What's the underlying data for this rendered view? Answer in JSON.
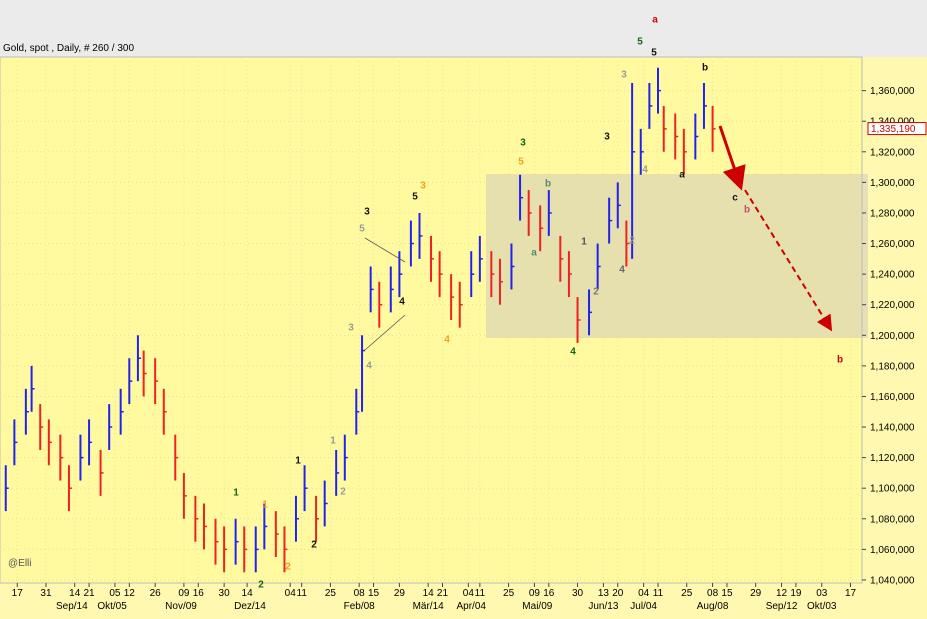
{
  "chart_data": {
    "type": "ohlc",
    "title": "Gold, spot , Daily, # 260 / 300",
    "watermark": "@Elli",
    "up_color": "#2222ee",
    "down_color": "#ee2222",
    "grid": true,
    "xlim": [
      0,
      300
    ],
    "ylim": [
      1038000,
      1382000
    ],
    "yticks": [
      {
        "value": 1040000,
        "label": "1,040,000"
      },
      {
        "value": 1060000,
        "label": "1,060,000"
      },
      {
        "value": 1080000,
        "label": "1,080,000"
      },
      {
        "value": 1100000,
        "label": "1,100,000"
      },
      {
        "value": 1120000,
        "label": "1,120,000"
      },
      {
        "value": 1140000,
        "label": "1,140,000"
      },
      {
        "value": 1160000,
        "label": "1,160,000"
      },
      {
        "value": 1180000,
        "label": "1,180,000"
      },
      {
        "value": 1200000,
        "label": "1,200,000"
      },
      {
        "value": 1220000,
        "label": "1,220,000"
      },
      {
        "value": 1240000,
        "label": "1,240,000"
      },
      {
        "value": 1260000,
        "label": "1,260,000"
      },
      {
        "value": 1280000,
        "label": "1,280,000"
      },
      {
        "value": 1300000,
        "label": "1,300,000"
      },
      {
        "value": 1320000,
        "label": "1,320,000"
      },
      {
        "value": 1340000,
        "label": "1,340,000"
      },
      {
        "value": 1360000,
        "label": "1,360,000"
      }
    ],
    "xticks": [
      {
        "value": 6,
        "label": "17"
      },
      {
        "value": 16,
        "label": "31"
      },
      {
        "value": 26,
        "label": "14"
      },
      {
        "value": 31,
        "label": "21"
      },
      {
        "value": 40,
        "label": "05"
      },
      {
        "value": 45,
        "label": "12"
      },
      {
        "value": 54,
        "label": "26"
      },
      {
        "value": 64,
        "label": "09"
      },
      {
        "value": 69,
        "label": "16"
      },
      {
        "value": 78,
        "label": "30"
      },
      {
        "value": 86,
        "label": "14"
      },
      {
        "value": 101,
        "label": "04"
      },
      {
        "value": 105,
        "label": "11"
      },
      {
        "value": 115,
        "label": "25"
      },
      {
        "value": 125,
        "label": "08"
      },
      {
        "value": 130,
        "label": "15"
      },
      {
        "value": 139,
        "label": "29"
      },
      {
        "value": 149,
        "label": "14"
      },
      {
        "value": 154,
        "label": "21"
      },
      {
        "value": 163,
        "label": "04"
      },
      {
        "value": 167,
        "label": "11"
      },
      {
        "value": 177,
        "label": "25"
      },
      {
        "value": 186,
        "label": "09"
      },
      {
        "value": 191,
        "label": "16"
      },
      {
        "value": 201,
        "label": "30"
      },
      {
        "value": 210,
        "label": "13"
      },
      {
        "value": 215,
        "label": "20"
      },
      {
        "value": 224,
        "label": "04"
      },
      {
        "value": 229,
        "label": "11"
      },
      {
        "value": 239,
        "label": "25"
      },
      {
        "value": 248,
        "label": "08"
      },
      {
        "value": 253,
        "label": "15"
      },
      {
        "value": 263,
        "label": "29"
      },
      {
        "value": 272,
        "label": "12"
      },
      {
        "value": 277,
        "label": "19"
      },
      {
        "value": 286,
        "label": "03"
      },
      {
        "value": 296,
        "label": "17"
      }
    ],
    "month_labels": [
      {
        "value": 25,
        "label": "Sep/14"
      },
      {
        "value": 39,
        "label": "Okt/05"
      },
      {
        "value": 63,
        "label": "Nov/09"
      },
      {
        "value": 87,
        "label": "Dez/14"
      },
      {
        "value": 125,
        "label": "Feb/08"
      },
      {
        "value": 149,
        "label": "Mär/14"
      },
      {
        "value": 164,
        "label": "Apr/04"
      },
      {
        "value": 187,
        "label": "Mai/09"
      },
      {
        "value": 210,
        "label": "Jun/13"
      },
      {
        "value": 224,
        "label": "Jul/04"
      },
      {
        "value": 248,
        "label": "Aug/08"
      },
      {
        "value": 272,
        "label": "Sep/12"
      },
      {
        "value": 286,
        "label": "Okt/03"
      }
    ],
    "last_price": {
      "value": 1335190,
      "label": "1,335,190"
    },
    "x": [
      2,
      5,
      9,
      11,
      14,
      17,
      21,
      24,
      28,
      31,
      35,
      38,
      42,
      45,
      48,
      50,
      54,
      57,
      61,
      64,
      68,
      71,
      75,
      78,
      82,
      85,
      89,
      92,
      96,
      99,
      103,
      106,
      110,
      113,
      117,
      120,
      124,
      126,
      129,
      132,
      136,
      139,
      143,
      146,
      150,
      153,
      157,
      160,
      164,
      167,
      171,
      174,
      178,
      181,
      184,
      188,
      191,
      195,
      198,
      201,
      205,
      208,
      212,
      215,
      218,
      220,
      223,
      226,
      229,
      231,
      235,
      238,
      242,
      245,
      248
    ],
    "high": [
      1115000,
      1145000,
      1165000,
      1180000,
      1155000,
      1145000,
      1135000,
      1115000,
      1135000,
      1145000,
      1125000,
      1155000,
      1165000,
      1185000,
      1200000,
      1190000,
      1185000,
      1165000,
      1135000,
      1110000,
      1095000,
      1090000,
      1080000,
      1075000,
      1080000,
      1075000,
      1075000,
      1090000,
      1085000,
      1075000,
      1095000,
      1115000,
      1095000,
      1105000,
      1125000,
      1135000,
      1165000,
      1200000,
      1245000,
      1235000,
      1245000,
      1255000,
      1275000,
      1280000,
      1265000,
      1255000,
      1240000,
      1235000,
      1255000,
      1265000,
      1255000,
      1250000,
      1260000,
      1305000,
      1295000,
      1285000,
      1295000,
      1265000,
      1255000,
      1225000,
      1230000,
      1260000,
      1290000,
      1300000,
      1275000,
      1365000,
      1335000,
      1365000,
      1375000,
      1350000,
      1345000,
      1335000,
      1345000,
      1365000,
      1350000
    ],
    "low": [
      1085000,
      1115000,
      1135000,
      1150000,
      1125000,
      1115000,
      1105000,
      1085000,
      1105000,
      1115000,
      1095000,
      1125000,
      1135000,
      1155000,
      1170000,
      1160000,
      1155000,
      1135000,
      1105000,
      1080000,
      1065000,
      1060000,
      1050000,
      1045000,
      1050000,
      1045000,
      1045000,
      1060000,
      1055000,
      1045000,
      1065000,
      1085000,
      1065000,
      1075000,
      1095000,
      1105000,
      1135000,
      1150000,
      1215000,
      1205000,
      1215000,
      1225000,
      1245000,
      1250000,
      1235000,
      1225000,
      1210000,
      1205000,
      1225000,
      1235000,
      1225000,
      1220000,
      1230000,
      1275000,
      1265000,
      1255000,
      1265000,
      1235000,
      1225000,
      1195000,
      1200000,
      1230000,
      1260000,
      1270000,
      1245000,
      1250000,
      1305000,
      1335000,
      1345000,
      1320000,
      1315000,
      1305000,
      1315000,
      1335000,
      1320000
    ],
    "close": [
      1100000,
      1130000,
      1150000,
      1165000,
      1140000,
      1130000,
      1120000,
      1100000,
      1120000,
      1130000,
      1110000,
      1140000,
      1150000,
      1170000,
      1185000,
      1175000,
      1170000,
      1150000,
      1120000,
      1095000,
      1080000,
      1075000,
      1065000,
      1060000,
      1065000,
      1060000,
      1060000,
      1075000,
      1070000,
      1060000,
      1080000,
      1100000,
      1080000,
      1090000,
      1110000,
      1120000,
      1150000,
      1190000,
      1230000,
      1220000,
      1230000,
      1240000,
      1260000,
      1265000,
      1250000,
      1240000,
      1225000,
      1220000,
      1240000,
      1250000,
      1240000,
      1235000,
      1245000,
      1290000,
      1280000,
      1270000,
      1280000,
      1250000,
      1240000,
      1210000,
      1215000,
      1245000,
      1275000,
      1285000,
      1260000,
      1320000,
      1320000,
      1350000,
      1360000,
      1335000,
      1330000,
      1320000,
      1330000,
      1350000,
      1335000
    ],
    "annotations": [
      {
        "text": "a",
        "color": "#cc0000"
      },
      {
        "text": "5",
        "color": "#116611"
      },
      {
        "text": "5",
        "color": "#111111"
      },
      {
        "text": "3",
        "color": "#999999"
      },
      {
        "text": "b",
        "color": "#111111"
      },
      {
        "text": "c",
        "color": "#111111"
      },
      {
        "text": "b",
        "color": "#c0506a"
      },
      {
        "text": "a",
        "color": "#111111"
      },
      {
        "text": "4",
        "color": "#999999"
      },
      {
        "text": "3",
        "color": "#111111"
      },
      {
        "text": "2",
        "color": "#999999"
      },
      {
        "text": "4",
        "color": "#666666"
      },
      {
        "text": "1",
        "color": "#555555"
      },
      {
        "text": "2",
        "color": "#777777"
      },
      {
        "text": "4",
        "color": "#116611"
      },
      {
        "text": "3",
        "color": "#116611"
      },
      {
        "text": "5",
        "color": "#f0a020"
      },
      {
        "text": "b",
        "color": "#5a8a6a"
      },
      {
        "text": "a",
        "color": "#5a8a6a"
      },
      {
        "text": "3",
        "color": "#f0a020"
      },
      {
        "text": "5",
        "color": "#111111"
      },
      {
        "text": "4",
        "color": "#f0a020"
      },
      {
        "text": "3",
        "color": "#111111"
      },
      {
        "text": "5",
        "color": "#999999"
      },
      {
        "text": "4",
        "color": "#111111"
      },
      {
        "text": "3",
        "color": "#999999"
      },
      {
        "text": "4",
        "color": "#999999"
      },
      {
        "text": "1",
        "color": "#999999"
      },
      {
        "text": "2",
        "color": "#999999"
      },
      {
        "text": "1",
        "color": "#111111"
      },
      {
        "text": "2",
        "color": "#111111"
      },
      {
        "text": "1",
        "color": "#116611"
      },
      {
        "text": "1",
        "color": "#f0a020"
      },
      {
        "text": "2",
        "color": "#116611"
      },
      {
        "text": "2",
        "color": "#f0a020"
      },
      {
        "text": "b",
        "color": "#cc0000"
      }
    ]
  }
}
